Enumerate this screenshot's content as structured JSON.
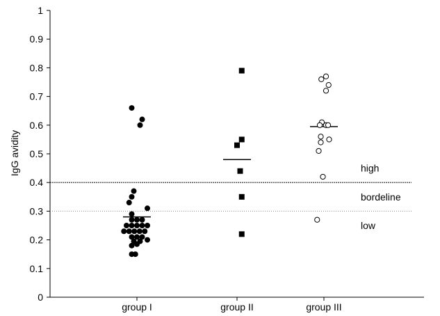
{
  "chart_data": {
    "type": "scatter",
    "title": "",
    "xlabel": "",
    "ylabel": "IgG avidity",
    "ylim": [
      0,
      1
    ],
    "yticks": [
      "0",
      "0.1",
      "0.2",
      "0.3",
      "0.4",
      "0.5",
      "0.6",
      "0.7",
      "0.8",
      "0.9",
      "1"
    ],
    "grid": false,
    "categories": [
      "group I",
      "group II",
      "group III"
    ],
    "series": [
      {
        "category": "group I",
        "marker": "filled-circle",
        "mean": 0.28,
        "points": [
          {
            "slot": -1.0,
            "y": 0.66
          },
          {
            "slot": 1.0,
            "y": 0.62
          },
          {
            "slot": 0.6,
            "y": 0.6
          },
          {
            "slot": -0.6,
            "y": 0.37
          },
          {
            "slot": -1.0,
            "y": 0.35
          },
          {
            "slot": -1.5,
            "y": 0.33
          },
          {
            "slot": 2.0,
            "y": 0.31
          },
          {
            "slot": -1.0,
            "y": 0.29
          },
          {
            "slot": -1.0,
            "y": 0.27
          },
          {
            "slot": 0.0,
            "y": 0.27
          },
          {
            "slot": 1.0,
            "y": 0.27
          },
          {
            "slot": -2.0,
            "y": 0.25
          },
          {
            "slot": -1.0,
            "y": 0.25
          },
          {
            "slot": 0.0,
            "y": 0.25
          },
          {
            "slot": 1.0,
            "y": 0.25
          },
          {
            "slot": 2.0,
            "y": 0.25
          },
          {
            "slot": -2.5,
            "y": 0.23
          },
          {
            "slot": -1.5,
            "y": 0.23
          },
          {
            "slot": -0.5,
            "y": 0.23
          },
          {
            "slot": 0.5,
            "y": 0.23
          },
          {
            "slot": 1.5,
            "y": 0.23
          },
          {
            "slot": -1.0,
            "y": 0.21
          },
          {
            "slot": 0.0,
            "y": 0.21
          },
          {
            "slot": 1.0,
            "y": 0.21
          },
          {
            "slot": -0.6,
            "y": 0.195
          },
          {
            "slot": 0.6,
            "y": 0.195
          },
          {
            "slot": 2.0,
            "y": 0.2
          },
          {
            "slot": -1.0,
            "y": 0.18
          },
          {
            "slot": 0.0,
            "y": 0.185
          },
          {
            "slot": -1.0,
            "y": 0.15
          },
          {
            "slot": -0.3,
            "y": 0.15
          }
        ]
      },
      {
        "category": "group II",
        "marker": "filled-square",
        "mean": 0.48,
        "points": [
          {
            "slot": 0.9,
            "y": 0.79
          },
          {
            "slot": 0.9,
            "y": 0.55
          },
          {
            "slot": 0.0,
            "y": 0.53
          },
          {
            "slot": 0.6,
            "y": 0.44
          },
          {
            "slot": 0.9,
            "y": 0.35
          },
          {
            "slot": 0.9,
            "y": 0.22
          }
        ]
      },
      {
        "category": "group III",
        "marker": "open-circle",
        "mean": 0.595,
        "points": [
          {
            "slot": -0.5,
            "y": 0.76
          },
          {
            "slot": 0.4,
            "y": 0.77
          },
          {
            "slot": 0.9,
            "y": 0.74
          },
          {
            "slot": 0.4,
            "y": 0.72
          },
          {
            "slot": -0.4,
            "y": 0.61
          },
          {
            "slot": -0.8,
            "y": 0.6
          },
          {
            "slot": 0.4,
            "y": 0.6
          },
          {
            "slot": 0.8,
            "y": 0.6
          },
          {
            "slot": 1.0,
            "y": 0.55
          },
          {
            "slot": -0.6,
            "y": 0.56
          },
          {
            "slot": -0.6,
            "y": 0.54
          },
          {
            "slot": -1.0,
            "y": 0.51
          },
          {
            "slot": -0.2,
            "y": 0.42
          },
          {
            "slot": -1.3,
            "y": 0.27
          }
        ]
      }
    ],
    "reference_lines": [
      {
        "y": 0.4,
        "style": "dashed-dark"
      },
      {
        "y": 0.3,
        "style": "dotted-light"
      }
    ],
    "annotations": [
      {
        "text": "high",
        "y": 0.45
      },
      {
        "text": "bordeline",
        "y": 0.35
      },
      {
        "text": "low",
        "y": 0.25
      }
    ]
  }
}
